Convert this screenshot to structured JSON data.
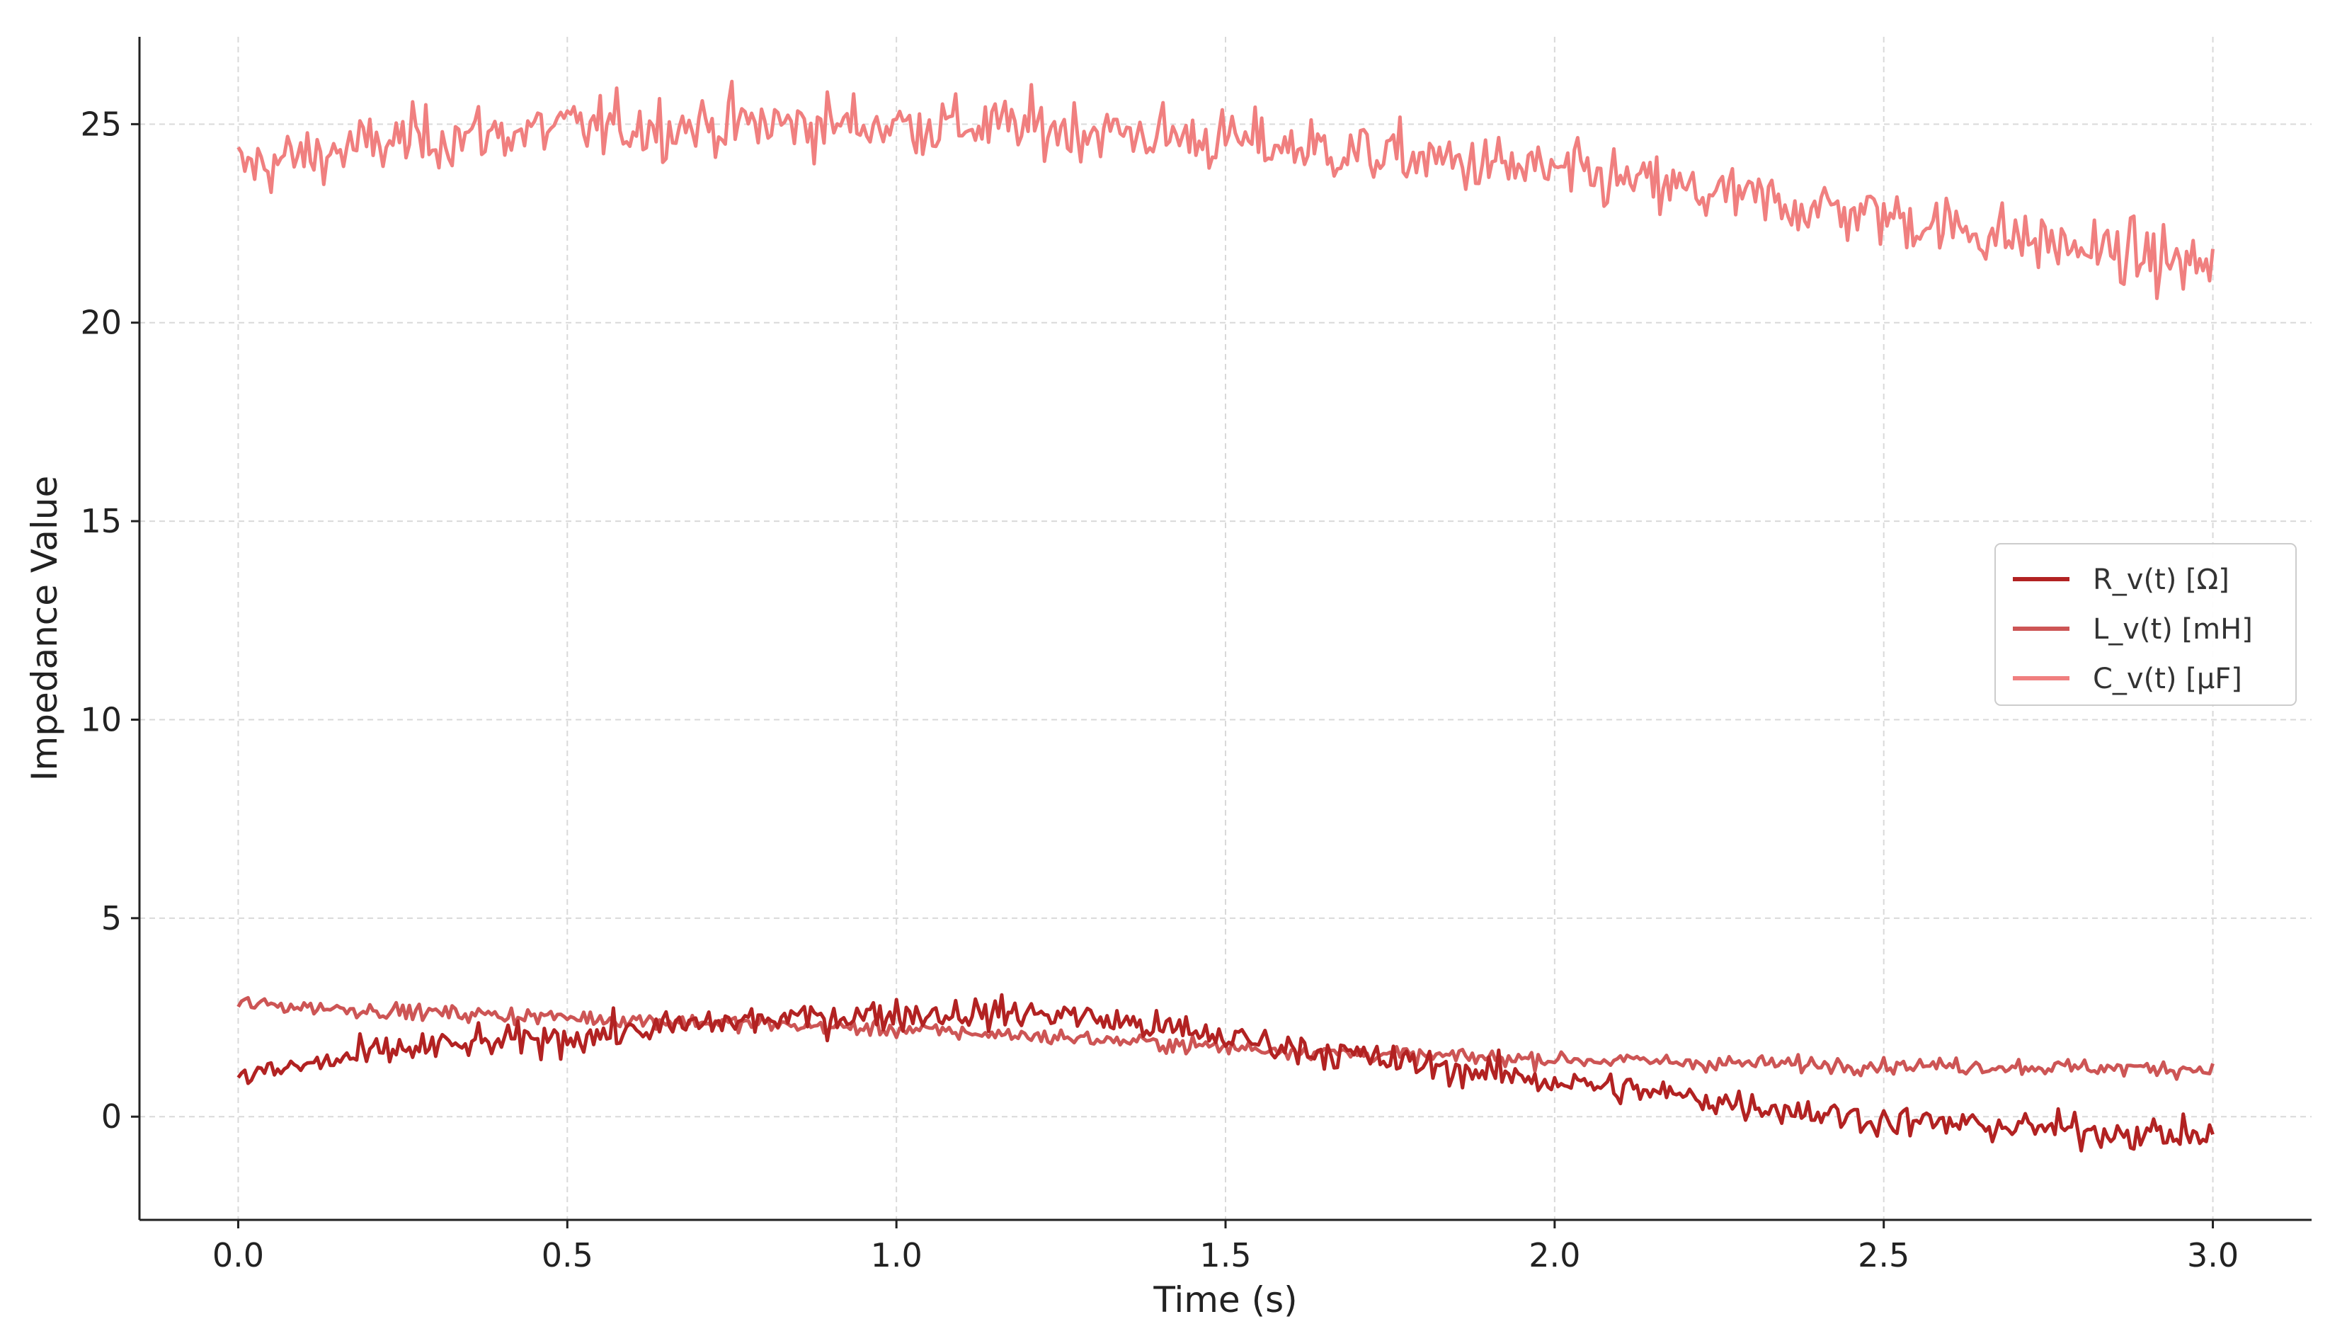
{
  "chart_data": {
    "type": "line",
    "title": "",
    "xlabel": "Time (s)",
    "ylabel": "Impedance Value",
    "xlim": [
      -0.15,
      3.15
    ],
    "ylim": [
      -2.6,
      27.2
    ],
    "xticks": [
      0.0,
      0.5,
      1.0,
      1.5,
      2.0,
      2.5,
      3.0
    ],
    "xtick_labels": [
      "0.0",
      "0.5",
      "1.0",
      "1.5",
      "2.0",
      "2.5",
      "3.0"
    ],
    "yticks": [
      0,
      5,
      10,
      15,
      20,
      25
    ],
    "ytick_labels": [
      "0",
      "5",
      "10",
      "15",
      "20",
      "25"
    ],
    "grid": true,
    "legend_position": "center-right",
    "x_range": [
      0.0,
      3.0
    ],
    "series": [
      {
        "name": "R_v(t) [Ω]",
        "color": "#b22222",
        "points": [
          [
            0.0,
            1.0
          ],
          [
            0.25,
            1.7
          ],
          [
            0.5,
            2.0
          ],
          [
            0.75,
            2.4
          ],
          [
            1.0,
            2.6
          ],
          [
            1.25,
            2.6
          ],
          [
            1.5,
            2.0
          ],
          [
            1.75,
            1.4
          ],
          [
            2.0,
            0.9
          ],
          [
            2.25,
            0.4
          ],
          [
            2.5,
            -0.1
          ],
          [
            2.75,
            -0.3
          ],
          [
            3.0,
            -0.5
          ]
        ],
        "noise": 0.28
      },
      {
        "name": "L_v(t) [mH]",
        "color": "#cd5555",
        "points": [
          [
            0.0,
            2.85
          ],
          [
            0.25,
            2.65
          ],
          [
            0.5,
            2.5
          ],
          [
            0.75,
            2.35
          ],
          [
            1.0,
            2.2
          ],
          [
            1.25,
            2.0
          ],
          [
            1.5,
            1.75
          ],
          [
            1.75,
            1.55
          ],
          [
            2.0,
            1.45
          ],
          [
            2.25,
            1.35
          ],
          [
            2.5,
            1.3
          ],
          [
            2.75,
            1.25
          ],
          [
            3.0,
            1.2
          ]
        ],
        "noise": 0.14
      },
      {
        "name": "C_v(t) [μF]",
        "color": "#f07f7f",
        "points": [
          [
            0.0,
            23.9
          ],
          [
            0.25,
            24.6
          ],
          [
            0.5,
            24.9
          ],
          [
            0.75,
            25.0
          ],
          [
            1.0,
            25.0
          ],
          [
            1.25,
            24.9
          ],
          [
            1.5,
            24.6
          ],
          [
            1.75,
            24.2
          ],
          [
            2.0,
            23.8
          ],
          [
            2.25,
            23.2
          ],
          [
            2.5,
            22.7
          ],
          [
            2.75,
            22.0
          ],
          [
            3.0,
            21.4
          ]
        ],
        "noise": 0.55
      }
    ]
  }
}
